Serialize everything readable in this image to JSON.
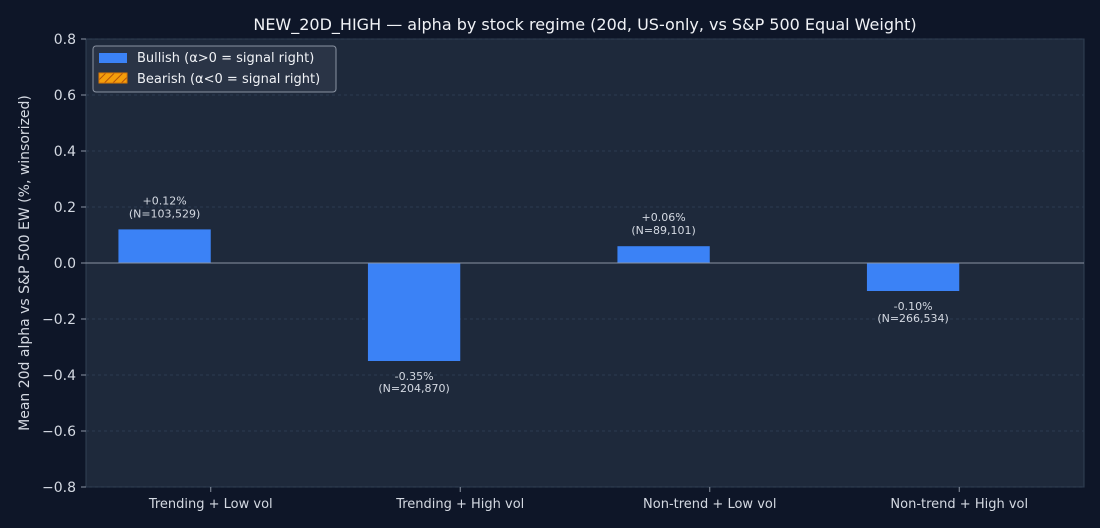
{
  "chart_data": {
    "type": "bar",
    "title": "NEW_20D_HIGH — alpha by stock regime (20d, US-only, vs S&P 500 Equal Weight)",
    "xlabel": "",
    "ylabel": "Mean 20d alpha vs S&P 500 EW (%, winsorized)",
    "ylim": [
      -0.8,
      0.8
    ],
    "yticks": [
      0.8,
      0.6,
      0.4,
      0.2,
      0.0,
      -0.2,
      -0.4,
      -0.6,
      -0.8
    ],
    "ytick_labels": [
      "0.8",
      "0.6",
      "0.4",
      "0.2",
      "0.0",
      "−0.2",
      "−0.4",
      "−0.6",
      "−0.8"
    ],
    "categories": [
      "Trending + Low vol",
      "Trending + High vol",
      "Non-trend + Low vol",
      "Non-trend + High vol"
    ],
    "grid": true,
    "legend_position": "top-left",
    "series": [
      {
        "name": "Bullish (α>0 = signal right)",
        "color": "#3b82f6",
        "values": [
          0.12,
          -0.35,
          0.06,
          -0.1
        ],
        "labels": [
          [
            "+0.12%",
            "(N=103,529)"
          ],
          [
            "-0.35%",
            "(N=204,870)"
          ],
          [
            "+0.06%",
            "(N=89,101)"
          ],
          [
            "-0.10%",
            "(N=266,534)"
          ]
        ]
      },
      {
        "name": "Bearish (α<0 = signal right)",
        "color": "#f59e0b",
        "hatch": "#d97706",
        "values": [
          0,
          0,
          0,
          0
        ]
      }
    ]
  }
}
